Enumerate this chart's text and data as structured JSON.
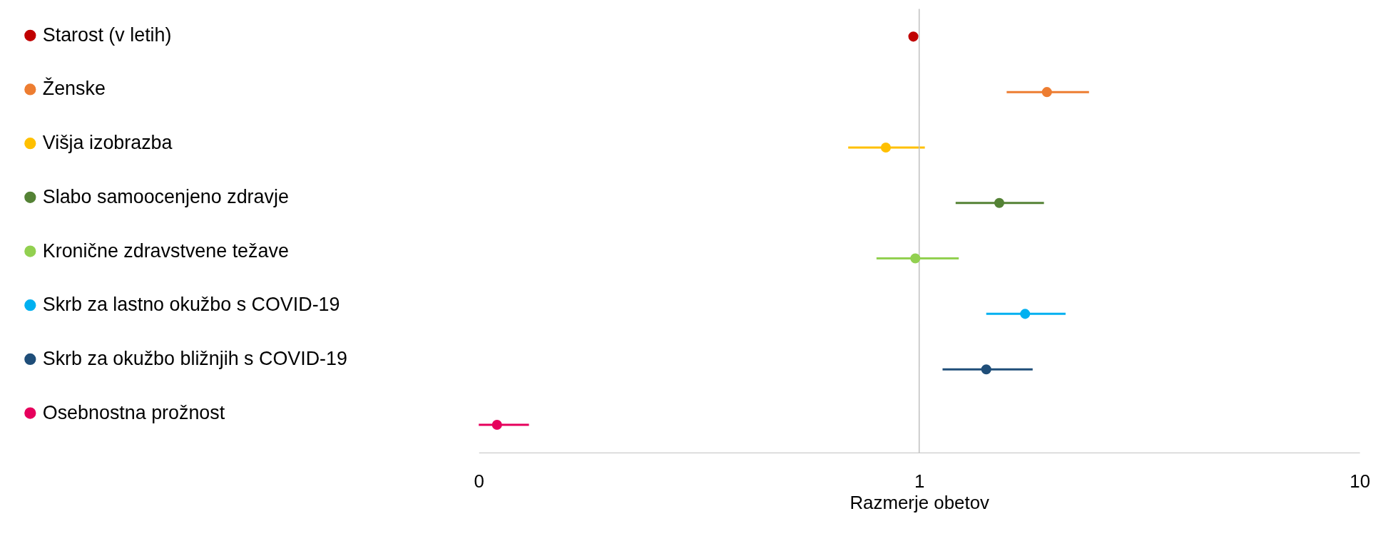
{
  "chart_data": {
    "type": "scatter",
    "orientation": "horizontal",
    "log": "x",
    "xlabel": "Razmerje obetov",
    "categories": [
      null,
      null,
      null,
      null,
      null,
      null,
      null,
      null
    ],
    "tick_labels": "x",
    "xlim": [
      0.1,
      10
    ],
    "xticks": [
      {
        "value": 0.1,
        "label": "0"
      },
      1,
      10
    ],
    "grid": false,
    "legend": "left",
    "marker": "circle",
    "ref_lines": [
      {
        "axis": "x",
        "value": 1,
        "color": "#bfbfbf"
      }
    ],
    "series": [
      {
        "name": "Starost (v letih)",
        "color": "#c00000",
        "values": [
          0.97,
          null,
          null,
          null,
          null,
          null,
          null,
          null
        ],
        "errors": [
          null,
          null,
          null,
          null,
          null,
          null,
          null,
          null
        ]
      },
      {
        "name": "Ženske",
        "color": "#ed7d31",
        "values": [
          null,
          1.95,
          null,
          null,
          null,
          null,
          null,
          null
        ],
        "errors": [
          null,
          [
            1.58,
            2.43
          ],
          null,
          null,
          null,
          null,
          null,
          null
        ]
      },
      {
        "name": "Višja izobrazba",
        "color": "#ffc000",
        "values": [
          null,
          null,
          0.84,
          null,
          null,
          null,
          null,
          null
        ],
        "errors": [
          null,
          null,
          [
            0.69,
            1.03
          ],
          null,
          null,
          null,
          null,
          null
        ]
      },
      {
        "name": "Slabo samoocenjeno zdravje",
        "color": "#548235",
        "values": [
          null,
          null,
          null,
          1.52,
          null,
          null,
          null,
          null
        ],
        "errors": [
          null,
          null,
          null,
          [
            1.21,
            1.92
          ],
          null,
          null,
          null,
          null
        ]
      },
      {
        "name": "Kronične zdravstvene težave",
        "color": "#92d050",
        "values": [
          null,
          null,
          null,
          null,
          0.98,
          null,
          null,
          null
        ],
        "errors": [
          null,
          null,
          null,
          null,
          [
            0.8,
            1.23
          ],
          null,
          null,
          null
        ]
      },
      {
        "name": "Skrb za lastno okužbo s COVID-19",
        "color": "#00b0f0",
        "values": [
          null,
          null,
          null,
          null,
          null,
          1.74,
          null,
          null
        ],
        "errors": [
          null,
          null,
          null,
          null,
          null,
          [
            1.42,
            2.15
          ],
          null,
          null
        ]
      },
      {
        "name": "Skrb za okužbo bližnjih s COVID-19",
        "color": "#1f4e79",
        "values": [
          null,
          null,
          null,
          null,
          null,
          null,
          1.42,
          null
        ],
        "errors": [
          null,
          null,
          null,
          null,
          null,
          null,
          [
            1.13,
            1.81
          ],
          null
        ]
      },
      {
        "name": "Osebnostna prožnost",
        "color": "#e6005c",
        "values": [
          null,
          null,
          null,
          null,
          null,
          null,
          null,
          0.11
        ],
        "errors": [
          null,
          null,
          null,
          null,
          null,
          null,
          null,
          [
            0.1,
            0.13
          ]
        ]
      }
    ]
  }
}
